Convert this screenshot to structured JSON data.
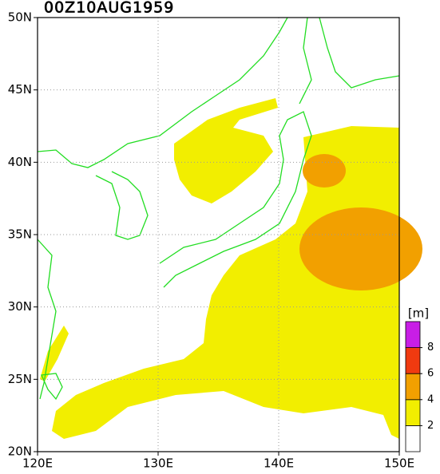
{
  "map": {
    "title": "00Z10AUG1959",
    "lon_range": [
      120,
      150
    ],
    "lat_range": [
      20,
      50
    ],
    "lon_ticks": [
      {
        "value": 120,
        "label": "120E"
      },
      {
        "value": 130,
        "label": "130E"
      },
      {
        "value": 140,
        "label": "140E"
      },
      {
        "value": 150,
        "label": "150E"
      }
    ],
    "lat_ticks": [
      {
        "value": 20,
        "label": "20N"
      },
      {
        "value": 25,
        "label": "25N"
      },
      {
        "value": 30,
        "label": "30N"
      },
      {
        "value": 35,
        "label": "35N"
      },
      {
        "value": 40,
        "label": "40N"
      },
      {
        "value": 45,
        "label": "45N"
      },
      {
        "value": 50,
        "label": "50N"
      }
    ],
    "grid": true,
    "colorbar": {
      "unit": "[m]",
      "ticks": [
        2,
        4,
        6,
        8
      ],
      "colors": [
        "#ffffff",
        "#f2ee00",
        "#f2a000",
        "#f03a10",
        "#c81ee6"
      ]
    }
  }
}
